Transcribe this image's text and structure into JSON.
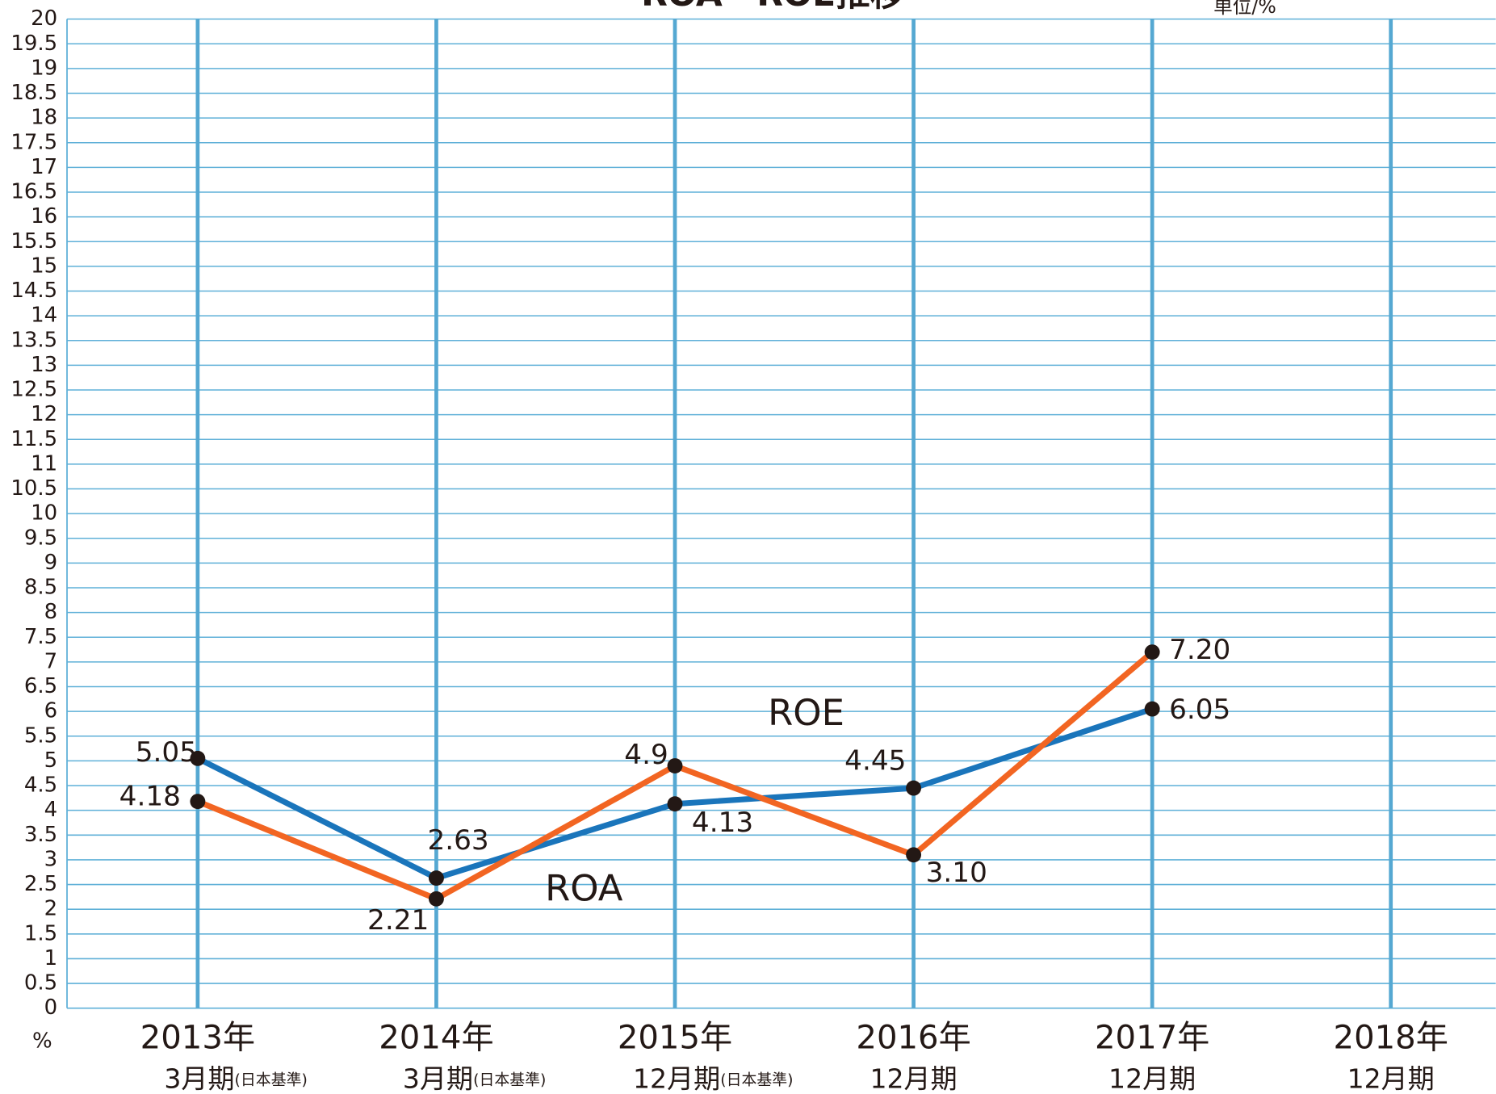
{
  "chart_data": {
    "type": "line",
    "title": "ROA・ROE推移",
    "unit": "単位/%",
    "y_unit_label": "%",
    "categories": [
      [
        "2013年",
        "3月期",
        "(日本基準)"
      ],
      [
        "2014年",
        "3月期",
        "(日本基準)"
      ],
      [
        "2015年",
        "12月期",
        "(日本基準)"
      ],
      [
        "2016年",
        "12月期"
      ],
      [
        "2017年",
        "12月期"
      ],
      [
        "2018年",
        "12月期"
      ]
    ],
    "series": [
      {
        "name": "ROE",
        "color": "#1a75bb",
        "values": [
          5.05,
          2.63,
          4.13,
          4.45,
          6.05,
          null
        ],
        "value_labels": [
          "5.05",
          "2.63",
          "4.13",
          "4.45",
          "6.05",
          null
        ]
      },
      {
        "name": "ROA",
        "color": "#f26522",
        "values": [
          4.18,
          2.21,
          4.9,
          3.1,
          7.2,
          null
        ],
        "value_labels": [
          "4.18",
          "2.21",
          "4.9",
          "3.10",
          "7.20",
          null
        ]
      }
    ],
    "ylim": [
      0,
      20
    ],
    "yticks": [
      0,
      0.5,
      1,
      1.5,
      2,
      2.5,
      3,
      3.5,
      4,
      4.5,
      5,
      5.5,
      6,
      6.5,
      7,
      7.5,
      8,
      8.5,
      9,
      9.5,
      10,
      10.5,
      11,
      11.5,
      12,
      12.5,
      13,
      13.5,
      14,
      14.5,
      15,
      15.5,
      16,
      16.5,
      17,
      17.5,
      18,
      18.5,
      19,
      19.5,
      20
    ],
    "grid": true
  }
}
